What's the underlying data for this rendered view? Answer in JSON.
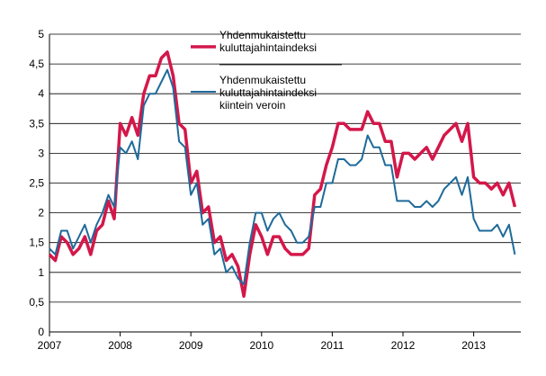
{
  "chart_data": {
    "type": "line",
    "title": "",
    "xlabel": "",
    "ylabel": "",
    "ylim": [
      0,
      5
    ],
    "yticks": [
      "0",
      "0,5",
      "1",
      "1,5",
      "2",
      "2,5",
      "3",
      "3,5",
      "4",
      "4,5",
      "5"
    ],
    "xticks": [
      "2007",
      "2008",
      "2009",
      "2010",
      "2011",
      "2012",
      "2013"
    ],
    "grid": "horizontal",
    "legend_position": "top-right",
    "x_start": "2007-01",
    "x_frequency": "monthly",
    "series": [
      {
        "name": "Yhdenmukaistettu kuluttajahintaindeksi",
        "color": "#d4174a",
        "values": [
          1.3,
          1.2,
          1.6,
          1.5,
          1.3,
          1.4,
          1.6,
          1.3,
          1.7,
          1.8,
          2.2,
          1.9,
          3.5,
          3.3,
          3.6,
          3.3,
          4.0,
          4.3,
          4.3,
          4.6,
          4.7,
          4.3,
          3.5,
          3.4,
          2.5,
          2.7,
          2.0,
          2.1,
          1.5,
          1.6,
          1.2,
          1.3,
          1.1,
          0.6,
          1.3,
          1.8,
          1.6,
          1.3,
          1.6,
          1.6,
          1.4,
          1.3,
          1.3,
          1.3,
          1.4,
          2.3,
          2.4,
          2.8,
          3.1,
          3.5,
          3.5,
          3.4,
          3.4,
          3.4,
          3.7,
          3.5,
          3.5,
          3.2,
          3.2,
          2.6,
          3.0,
          3.0,
          2.9,
          3.0,
          3.1,
          2.9,
          3.1,
          3.3,
          3.4,
          3.5,
          3.2,
          3.5,
          2.6,
          2.5,
          2.5,
          2.4,
          2.5,
          2.3,
          2.5,
          2.1
        ]
      },
      {
        "name": "Yhdenmukaistettu kuluttajahintaindeksi kiintein veroin",
        "color": "#1e6a9a",
        "values": [
          1.4,
          1.3,
          1.7,
          1.7,
          1.4,
          1.6,
          1.8,
          1.5,
          1.8,
          2.0,
          2.3,
          2.1,
          3.1,
          3.0,
          3.2,
          2.9,
          3.8,
          4.0,
          4.0,
          4.2,
          4.4,
          4.1,
          3.2,
          3.1,
          2.3,
          2.5,
          1.8,
          1.9,
          1.3,
          1.4,
          1.0,
          1.1,
          0.9,
          0.8,
          1.5,
          2.0,
          2.0,
          1.7,
          1.9,
          2.0,
          1.8,
          1.7,
          1.5,
          1.5,
          1.6,
          2.1,
          2.1,
          2.5,
          2.5,
          2.9,
          2.9,
          2.8,
          2.8,
          2.9,
          3.3,
          3.1,
          3.1,
          2.8,
          2.8,
          2.2,
          2.2,
          2.2,
          2.1,
          2.1,
          2.2,
          2.1,
          2.2,
          2.4,
          2.5,
          2.6,
          2.3,
          2.6,
          1.9,
          1.7,
          1.7,
          1.7,
          1.8,
          1.6,
          1.8,
          1.3
        ]
      }
    ]
  }
}
